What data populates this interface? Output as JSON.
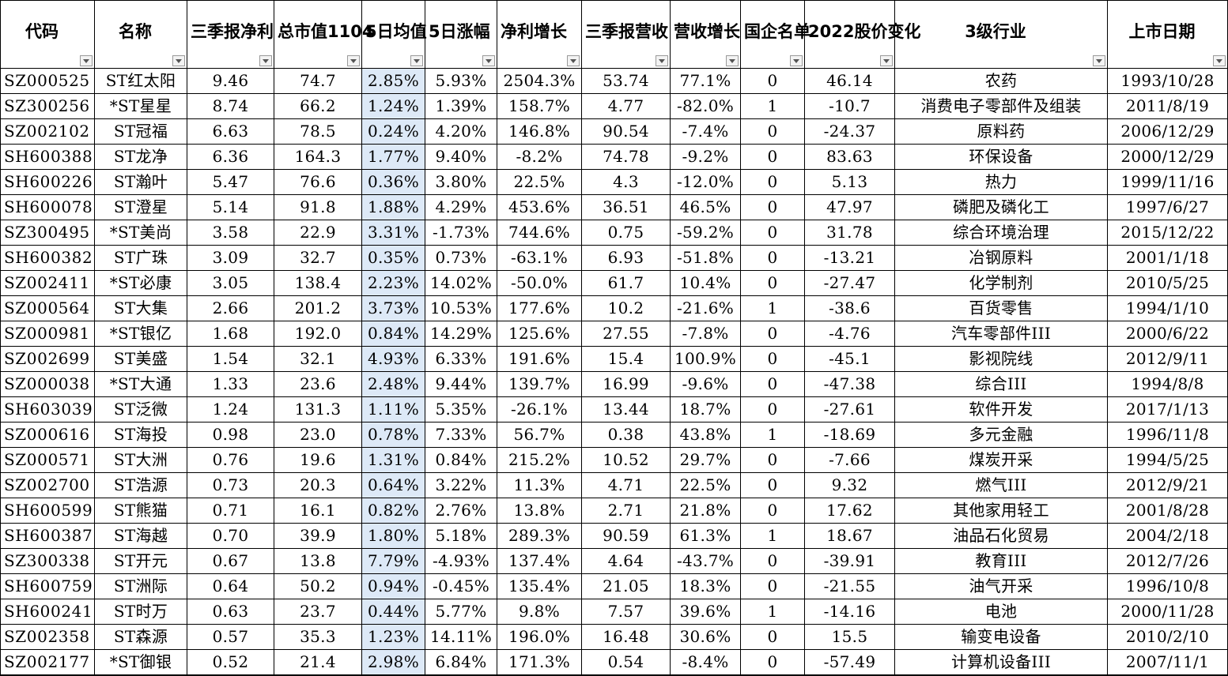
{
  "columns": [
    {
      "label": "代码"
    },
    {
      "label": "名称"
    },
    {
      "label": "三季报净利"
    },
    {
      "label": "总市值1104"
    },
    {
      "label": "5日均值"
    },
    {
      "label": "5日涨幅"
    },
    {
      "label": "净利增长"
    },
    {
      "label": "三季报营收"
    },
    {
      "label": "营收增长"
    },
    {
      "label": "国企名单"
    },
    {
      "label": "2022股价变化"
    },
    {
      "label": "3级行业"
    },
    {
      "label": "上市日期"
    }
  ],
  "rows": [
    [
      "SZ000525",
      "ST红太阳",
      "9.46",
      "74.7",
      "2.85%",
      "5.93%",
      "2504.3%",
      "53.74",
      "77.1%",
      "0",
      "46.14",
      "农药",
      "1993/10/28"
    ],
    [
      "SZ300256",
      "*ST星星",
      "8.74",
      "66.2",
      "1.24%",
      "1.39%",
      "158.7%",
      "4.77",
      "-82.0%",
      "1",
      "-10.7",
      "消费电子零部件及组装",
      "2011/8/19"
    ],
    [
      "SZ002102",
      "ST冠福",
      "6.63",
      "78.5",
      "0.24%",
      "4.20%",
      "146.8%",
      "90.54",
      "-7.4%",
      "0",
      "-24.37",
      "原料药",
      "2006/12/29"
    ],
    [
      "SH600388",
      "ST龙净",
      "6.36",
      "164.3",
      "1.77%",
      "9.40%",
      "-8.2%",
      "74.78",
      "-9.2%",
      "0",
      "83.63",
      "环保设备",
      "2000/12/29"
    ],
    [
      "SH600226",
      "ST瀚叶",
      "5.47",
      "76.6",
      "0.36%",
      "3.80%",
      "22.5%",
      "4.3",
      "-12.0%",
      "0",
      "5.13",
      "热力",
      "1999/11/16"
    ],
    [
      "SH600078",
      "ST澄星",
      "5.14",
      "91.8",
      "1.88%",
      "4.29%",
      "453.6%",
      "36.51",
      "46.5%",
      "0",
      "47.97",
      "磷肥及磷化工",
      "1997/6/27"
    ],
    [
      "SZ300495",
      "*ST美尚",
      "3.58",
      "22.9",
      "3.31%",
      "-1.73%",
      "744.6%",
      "0.75",
      "-59.2%",
      "0",
      "31.78",
      "综合环境治理",
      "2015/12/22"
    ],
    [
      "SH600382",
      "ST广珠",
      "3.09",
      "32.7",
      "0.35%",
      "0.73%",
      "-63.1%",
      "6.93",
      "-51.8%",
      "0",
      "-13.21",
      "冶钢原料",
      "2001/1/18"
    ],
    [
      "SZ002411",
      "*ST必康",
      "3.05",
      "138.4",
      "2.23%",
      "14.02%",
      "-50.0%",
      "61.7",
      "10.4%",
      "0",
      "-27.47",
      "化学制剂",
      "2010/5/25"
    ],
    [
      "SZ000564",
      "ST大集",
      "2.66",
      "201.2",
      "3.73%",
      "10.53%",
      "177.6%",
      "10.2",
      "-21.6%",
      "1",
      "-38.6",
      "百货零售",
      "1994/1/10"
    ],
    [
      "SZ000981",
      "*ST银亿",
      "1.68",
      "192.0",
      "0.84%",
      "14.29%",
      "125.6%",
      "27.55",
      "-7.8%",
      "0",
      "-4.76",
      "汽车零部件III",
      "2000/6/22"
    ],
    [
      "SZ002699",
      "ST美盛",
      "1.54",
      "32.1",
      "4.93%",
      "6.33%",
      "191.6%",
      "15.4",
      "100.9%",
      "0",
      "-45.1",
      "影视院线",
      "2012/9/11"
    ],
    [
      "SZ000038",
      "*ST大通",
      "1.33",
      "23.6",
      "2.48%",
      "9.44%",
      "139.7%",
      "16.99",
      "-9.6%",
      "0",
      "-47.38",
      "综合III",
      "1994/8/8"
    ],
    [
      "SH603039",
      "ST泛微",
      "1.24",
      "131.3",
      "1.11%",
      "5.35%",
      "-26.1%",
      "13.44",
      "18.7%",
      "0",
      "-27.61",
      "软件开发",
      "2017/1/13"
    ],
    [
      "SZ000616",
      "ST海投",
      "0.98",
      "23.0",
      "0.78%",
      "7.33%",
      "56.7%",
      "0.38",
      "43.8%",
      "1",
      "-18.69",
      "多元金融",
      "1996/11/8"
    ],
    [
      "SZ000571",
      "ST大洲",
      "0.76",
      "19.6",
      "1.31%",
      "0.84%",
      "215.2%",
      "10.52",
      "29.7%",
      "0",
      "-7.66",
      "煤炭开采",
      "1994/5/25"
    ],
    [
      "SZ002700",
      "ST浩源",
      "0.73",
      "20.3",
      "0.64%",
      "3.22%",
      "11.3%",
      "4.71",
      "22.5%",
      "0",
      "9.32",
      "燃气III",
      "2012/9/21"
    ],
    [
      "SH600599",
      "ST熊猫",
      "0.71",
      "16.1",
      "0.82%",
      "2.76%",
      "13.8%",
      "2.71",
      "21.8%",
      "0",
      "17.62",
      "其他家用轻工",
      "2001/8/28"
    ],
    [
      "SH600387",
      "ST海越",
      "0.70",
      "39.9",
      "1.80%",
      "5.18%",
      "289.3%",
      "90.59",
      "61.3%",
      "1",
      "18.67",
      "油品石化贸易",
      "2004/2/18"
    ],
    [
      "SZ300338",
      "ST开元",
      "0.67",
      "13.8",
      "7.79%",
      "-4.93%",
      "137.4%",
      "4.64",
      "-43.7%",
      "0",
      "-39.91",
      "教育III",
      "2012/7/26"
    ],
    [
      "SH600759",
      "ST洲际",
      "0.64",
      "50.2",
      "0.94%",
      "-0.45%",
      "135.4%",
      "21.05",
      "18.3%",
      "0",
      "-21.55",
      "油气开采",
      "1996/10/8"
    ],
    [
      "SH600241",
      "ST时万",
      "0.63",
      "23.7",
      "0.44%",
      "5.77%",
      "9.8%",
      "7.57",
      "39.6%",
      "1",
      "-14.16",
      "电池",
      "2000/11/28"
    ],
    [
      "SZ002358",
      "ST森源",
      "0.57",
      "35.3",
      "1.23%",
      "14.11%",
      "196.0%",
      "16.48",
      "30.6%",
      "0",
      "15.5",
      "输变电设备",
      "2010/2/10"
    ],
    [
      "SZ002177",
      "*ST御银",
      "0.52",
      "21.4",
      "2.98%",
      "6.84%",
      "171.3%",
      "0.54",
      "-8.4%",
      "0",
      "-57.49",
      "计算机设备III",
      "2007/11/1"
    ]
  ],
  "highlight_color": "#dde9f7"
}
